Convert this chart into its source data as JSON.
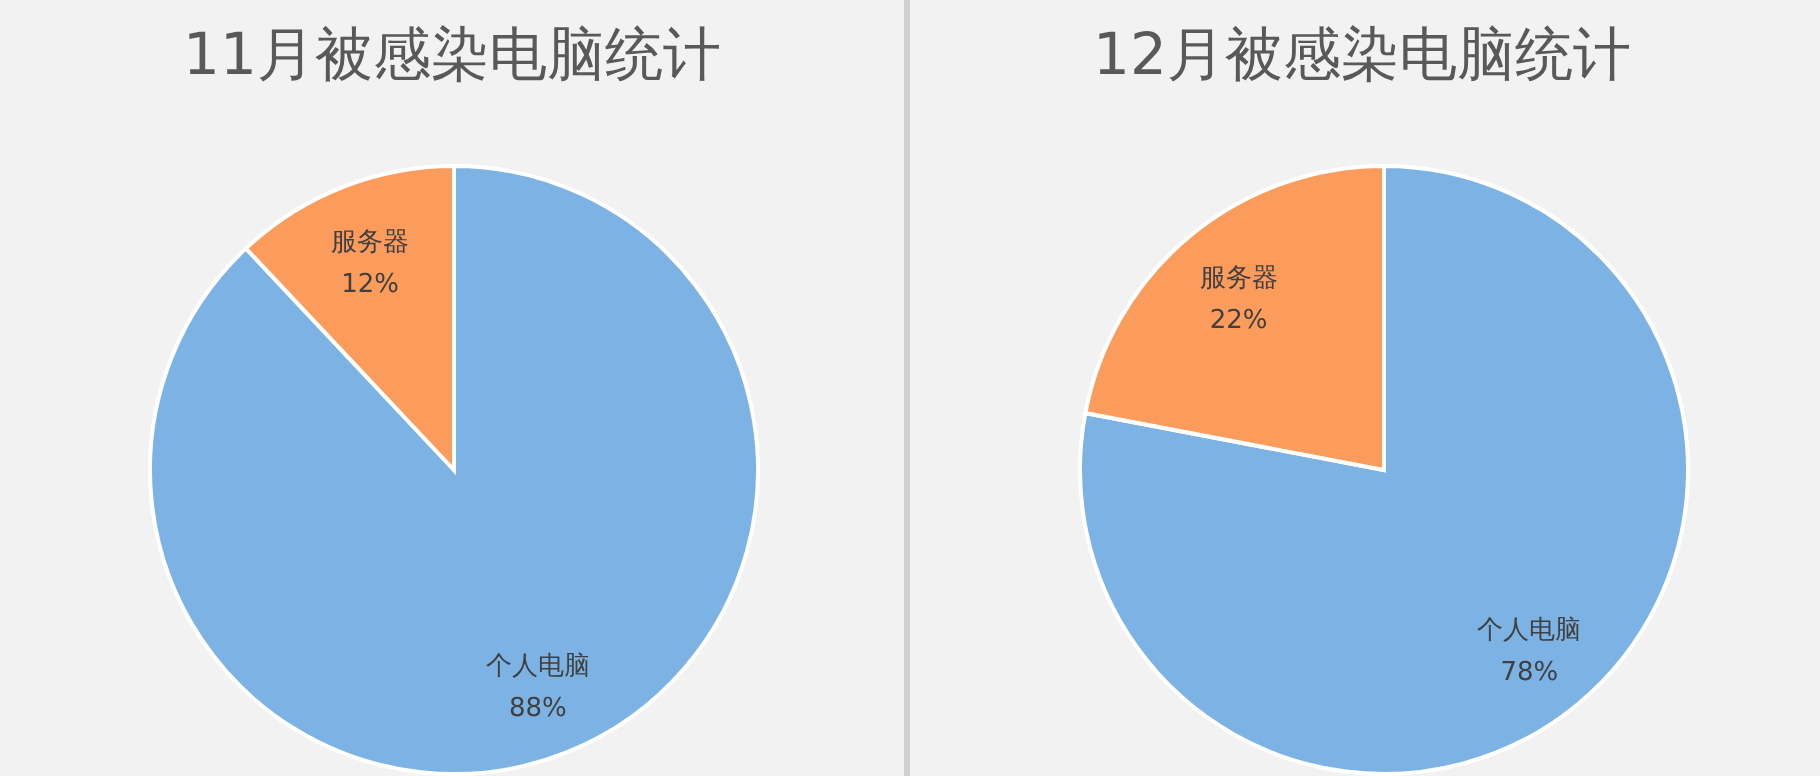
{
  "chart_data": [
    {
      "type": "pie",
      "title": "11月被感染电脑统计",
      "categories": [
        "个人电脑",
        "服务器"
      ],
      "values": [
        88,
        12
      ],
      "value_labels": [
        "88%",
        "12%"
      ],
      "colors": [
        "#7db3e4",
        "#fb9b5c"
      ],
      "legend": false
    },
    {
      "type": "pie",
      "title": "12月被感染电脑统计",
      "categories": [
        "个人电脑",
        "服务器"
      ],
      "values": [
        78,
        22
      ],
      "value_labels": [
        "78%",
        "22%"
      ],
      "colors": [
        "#7db3e4",
        "#fb9b5c"
      ],
      "legend": false
    }
  ]
}
